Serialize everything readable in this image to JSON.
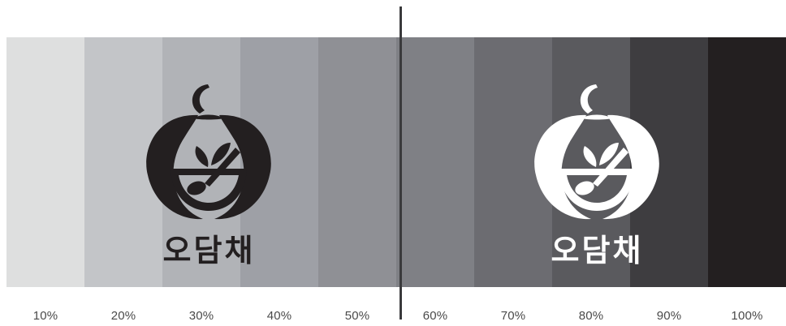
{
  "swatches": [
    {
      "label": "10%",
      "color": "#dedfdf"
    },
    {
      "label": "20%",
      "color": "#c3c5c8"
    },
    {
      "label": "30%",
      "color": "#b1b3b7"
    },
    {
      "label": "40%",
      "color": "#9ea0a6"
    },
    {
      "label": "50%",
      "color": "#8f9095"
    },
    {
      "label": "60%",
      "color": "#7f8085"
    },
    {
      "label": "70%",
      "color": "#6c6c71"
    },
    {
      "label": "80%",
      "color": "#5a5a5e"
    },
    {
      "label": "90%",
      "color": "#3e3d40"
    },
    {
      "label": "100%",
      "color": "#231f20"
    }
  ],
  "logos": [
    {
      "variant": "dark-on-light",
      "brand_text": "오담채",
      "color": "#231f20"
    },
    {
      "variant": "light-on-dark",
      "brand_text": "오담채",
      "color": "#ffffff"
    }
  ],
  "colors": {
    "divider": "#3a3a3c",
    "label_text": "#4a4a4a"
  }
}
